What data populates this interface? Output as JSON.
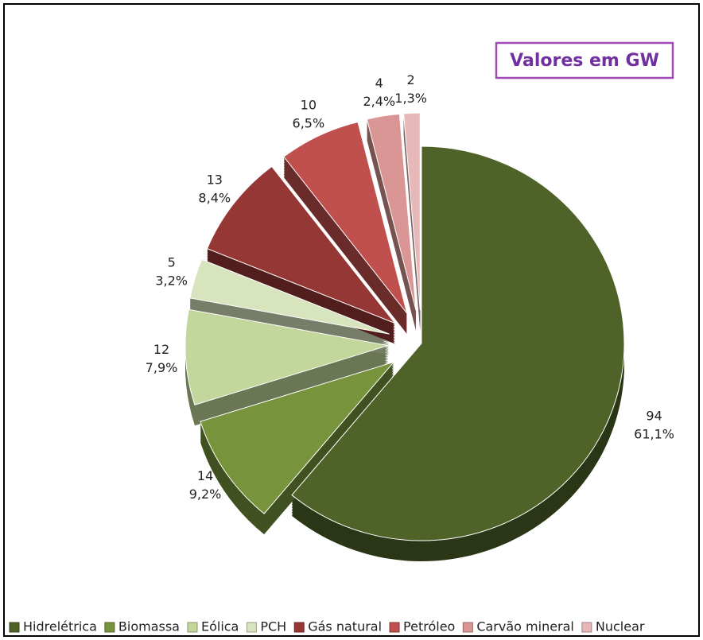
{
  "chart_data": {
    "type": "pie",
    "title": "Valores em GW",
    "categories": [
      "Hidrelétrica",
      "Biomassa",
      "Eólica",
      "PCH",
      "Gás natural",
      "Petróleo",
      "Carvão mineral",
      "Nuclear"
    ],
    "values": [
      94,
      14,
      12,
      5,
      13,
      10,
      4,
      2
    ],
    "percent_labels": [
      "61,1%",
      "9,2%",
      "7,9%",
      "3,2%",
      "8,4%",
      "6,5%",
      "2,4%",
      "1,3%"
    ],
    "colors": [
      "#4f6228",
      "#77933c",
      "#c3d69b",
      "#d7e4bd",
      "#953735",
      "#c0504d",
      "#d99694",
      "#e6b9b8"
    ],
    "legend": "bottom"
  }
}
